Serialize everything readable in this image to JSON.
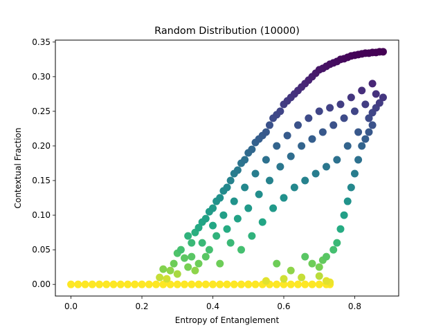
{
  "chart_data": {
    "type": "scatter",
    "title": "Random Distribution (10000)",
    "xlabel": "Entropy of Entanglement",
    "ylabel": "Contextual Fraction",
    "xlim": [
      -0.044,
      0.924
    ],
    "ylim": [
      -0.0168,
      0.3528
    ],
    "xticks": [
      0.0,
      0.2,
      0.4,
      0.6,
      0.8
    ],
    "xtick_labels": [
      "0.0",
      "0.2",
      "0.4",
      "0.6",
      "0.8"
    ],
    "yticks": [
      0.0,
      0.05,
      0.1,
      0.15,
      0.2,
      0.25,
      0.3,
      0.35
    ],
    "ytick_labels": [
      "0.00",
      "0.05",
      "0.10",
      "0.15",
      "0.20",
      "0.25",
      "0.30",
      "0.35"
    ],
    "grid": false,
    "colormap": "viridis",
    "color_encodes": "y (reversed: high = purple, low = yellow)",
    "sample_count": 10000,
    "description_of_distribution": "Points fill a triangular region: y = 0 baseline from x = 0.0 to x≈0.73; upper envelope rising from (0.24, 0) to (0.88, 0.335); right envelope falling from (0.88, 0.27) to (0.73, 0).",
    "points": [
      [
        0.0,
        0.0
      ],
      [
        0.02,
        0.0
      ],
      [
        0.04,
        0.0
      ],
      [
        0.06,
        0.0
      ],
      [
        0.08,
        0.0
      ],
      [
        0.1,
        0.0
      ],
      [
        0.12,
        0.0
      ],
      [
        0.14,
        0.0
      ],
      [
        0.16,
        0.0
      ],
      [
        0.18,
        0.0
      ],
      [
        0.2,
        0.0
      ],
      [
        0.22,
        0.0
      ],
      [
        0.24,
        0.0
      ],
      [
        0.26,
        0.0
      ],
      [
        0.28,
        0.0
      ],
      [
        0.3,
        0.0
      ],
      [
        0.32,
        0.0
      ],
      [
        0.34,
        0.0
      ],
      [
        0.36,
        0.0
      ],
      [
        0.38,
        0.0
      ],
      [
        0.4,
        0.0
      ],
      [
        0.42,
        0.0
      ],
      [
        0.44,
        0.0
      ],
      [
        0.46,
        0.0
      ],
      [
        0.48,
        0.0
      ],
      [
        0.5,
        0.0
      ],
      [
        0.52,
        0.0
      ],
      [
        0.54,
        0.0
      ],
      [
        0.56,
        0.0
      ],
      [
        0.58,
        0.0
      ],
      [
        0.6,
        0.0
      ],
      [
        0.62,
        0.0
      ],
      [
        0.64,
        0.0
      ],
      [
        0.66,
        0.0
      ],
      [
        0.68,
        0.0
      ],
      [
        0.7,
        0.0
      ],
      [
        0.72,
        0.0
      ],
      [
        0.73,
        0.0
      ],
      [
        0.25,
        0.01
      ],
      [
        0.26,
        0.022
      ],
      [
        0.28,
        0.02
      ],
      [
        0.27,
        0.008
      ],
      [
        0.29,
        0.03
      ],
      [
        0.3,
        0.045
      ],
      [
        0.31,
        0.05
      ],
      [
        0.32,
        0.038
      ],
      [
        0.33,
        0.025
      ],
      [
        0.3,
        0.015
      ],
      [
        0.34,
        0.06
      ],
      [
        0.33,
        0.07
      ],
      [
        0.35,
        0.075
      ],
      [
        0.36,
        0.082
      ],
      [
        0.34,
        0.04
      ],
      [
        0.35,
        0.02
      ],
      [
        0.37,
        0.09
      ],
      [
        0.38,
        0.095
      ],
      [
        0.39,
        0.105
      ],
      [
        0.37,
        0.06
      ],
      [
        0.38,
        0.04
      ],
      [
        0.36,
        0.03
      ],
      [
        0.4,
        0.11
      ],
      [
        0.41,
        0.12
      ],
      [
        0.42,
        0.125
      ],
      [
        0.4,
        0.085
      ],
      [
        0.41,
        0.07
      ],
      [
        0.39,
        0.05
      ],
      [
        0.43,
        0.135
      ],
      [
        0.44,
        0.14
      ],
      [
        0.45,
        0.15
      ],
      [
        0.43,
        0.1
      ],
      [
        0.44,
        0.08
      ],
      [
        0.42,
        0.03
      ],
      [
        0.46,
        0.16
      ],
      [
        0.47,
        0.165
      ],
      [
        0.48,
        0.175
      ],
      [
        0.46,
        0.12
      ],
      [
        0.47,
        0.095
      ],
      [
        0.45,
        0.06
      ],
      [
        0.49,
        0.18
      ],
      [
        0.5,
        0.19
      ],
      [
        0.51,
        0.195
      ],
      [
        0.49,
        0.14
      ],
      [
        0.5,
        0.11
      ],
      [
        0.48,
        0.05
      ],
      [
        0.52,
        0.205
      ],
      [
        0.53,
        0.21
      ],
      [
        0.54,
        0.215
      ],
      [
        0.52,
        0.16
      ],
      [
        0.53,
        0.13
      ],
      [
        0.51,
        0.07
      ],
      [
        0.55,
        0.22
      ],
      [
        0.56,
        0.23
      ],
      [
        0.57,
        0.24
      ],
      [
        0.55,
        0.18
      ],
      [
        0.56,
        0.15
      ],
      [
        0.54,
        0.09
      ],
      [
        0.58,
        0.245
      ],
      [
        0.59,
        0.25
      ],
      [
        0.6,
        0.26
      ],
      [
        0.58,
        0.2
      ],
      [
        0.59,
        0.17
      ],
      [
        0.57,
        0.11
      ],
      [
        0.61,
        0.265
      ],
      [
        0.62,
        0.27
      ],
      [
        0.63,
        0.275
      ],
      [
        0.61,
        0.215
      ],
      [
        0.62,
        0.185
      ],
      [
        0.6,
        0.125
      ],
      [
        0.64,
        0.28
      ],
      [
        0.65,
        0.285
      ],
      [
        0.66,
        0.29
      ],
      [
        0.64,
        0.23
      ],
      [
        0.65,
        0.2
      ],
      [
        0.63,
        0.14
      ],
      [
        0.67,
        0.295
      ],
      [
        0.68,
        0.3
      ],
      [
        0.69,
        0.305
      ],
      [
        0.67,
        0.24
      ],
      [
        0.68,
        0.21
      ],
      [
        0.66,
        0.15
      ],
      [
        0.7,
        0.31
      ],
      [
        0.71,
        0.312
      ],
      [
        0.72,
        0.315
      ],
      [
        0.7,
        0.25
      ],
      [
        0.71,
        0.22
      ],
      [
        0.69,
        0.16
      ],
      [
        0.73,
        0.318
      ],
      [
        0.74,
        0.32
      ],
      [
        0.75,
        0.322
      ],
      [
        0.73,
        0.255
      ],
      [
        0.74,
        0.23
      ],
      [
        0.72,
        0.17
      ],
      [
        0.76,
        0.325
      ],
      [
        0.77,
        0.326
      ],
      [
        0.78,
        0.328
      ],
      [
        0.76,
        0.26
      ],
      [
        0.77,
        0.24
      ],
      [
        0.75,
        0.18
      ],
      [
        0.79,
        0.33
      ],
      [
        0.8,
        0.331
      ],
      [
        0.81,
        0.332
      ],
      [
        0.79,
        0.27
      ],
      [
        0.8,
        0.25
      ],
      [
        0.78,
        0.2
      ],
      [
        0.82,
        0.333
      ],
      [
        0.83,
        0.334
      ],
      [
        0.84,
        0.334
      ],
      [
        0.82,
        0.28
      ],
      [
        0.83,
        0.26
      ],
      [
        0.81,
        0.22
      ],
      [
        0.85,
        0.335
      ],
      [
        0.86,
        0.335
      ],
      [
        0.87,
        0.336
      ],
      [
        0.85,
        0.29
      ],
      [
        0.86,
        0.275
      ],
      [
        0.84,
        0.24
      ],
      [
        0.88,
        0.336
      ],
      [
        0.88,
        0.27
      ],
      [
        0.87,
        0.262
      ],
      [
        0.86,
        0.255
      ],
      [
        0.85,
        0.248
      ],
      [
        0.84,
        0.24
      ],
      [
        0.5,
        0.0
      ],
      [
        0.55,
        0.005
      ],
      [
        0.6,
        0.008
      ],
      [
        0.65,
        0.01
      ],
      [
        0.7,
        0.012
      ],
      [
        0.72,
        0.005
      ],
      [
        0.73,
        0.003
      ],
      [
        0.62,
        0.02
      ],
      [
        0.58,
        0.03
      ],
      [
        0.66,
        0.04
      ],
      [
        0.68,
        0.03
      ],
      [
        0.7,
        0.025
      ],
      [
        0.71,
        0.035
      ],
      [
        0.72,
        0.04
      ],
      [
        0.74,
        0.05
      ],
      [
        0.75,
        0.06
      ],
      [
        0.76,
        0.08
      ],
      [
        0.77,
        0.1
      ],
      [
        0.78,
        0.12
      ],
      [
        0.79,
        0.14
      ],
      [
        0.8,
        0.16
      ],
      [
        0.81,
        0.18
      ],
      [
        0.82,
        0.2
      ],
      [
        0.83,
        0.21
      ],
      [
        0.84,
        0.22
      ],
      [
        0.85,
        0.23
      ]
    ]
  }
}
